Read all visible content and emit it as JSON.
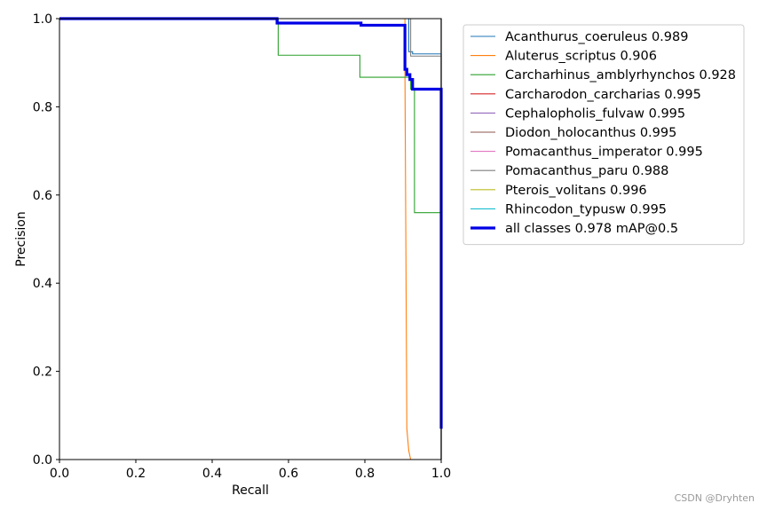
{
  "chart_data": {
    "type": "line",
    "title": "",
    "xlabel": "Recall",
    "ylabel": "Precision",
    "xlim": [
      0,
      1
    ],
    "ylim": [
      0,
      1
    ],
    "xticks": [
      "0.0",
      "0.2",
      "0.4",
      "0.6",
      "0.8",
      "1.0"
    ],
    "yticks": [
      "0.0",
      "0.2",
      "0.4",
      "0.6",
      "0.8",
      "1.0"
    ],
    "legend_position": "outside-top-right",
    "series": [
      {
        "name": "Acanthurus_coeruleus 0.989",
        "color": "#1f77b4",
        "bold": false,
        "x": [
          0,
          0.915,
          0.915,
          0.925,
          0.925,
          1.0,
          1.0
        ],
        "y": [
          1,
          1,
          0.925,
          0.925,
          0.92,
          0.92,
          0
        ]
      },
      {
        "name": "Aluterus_scriptus 0.906",
        "color": "#ff7f0e",
        "bold": false,
        "x": [
          0,
          0.905,
          0.905,
          0.91,
          0.915,
          0.92,
          1.0
        ],
        "y": [
          1,
          1,
          0.88,
          0.07,
          0.02,
          0,
          0
        ]
      },
      {
        "name": "Carcharhinus_amblyrhynchos 0.928",
        "color": "#2ca02c",
        "bold": false,
        "x": [
          0,
          0.573,
          0.573,
          0.787,
          0.787,
          0.92,
          0.92,
          0.93,
          0.93,
          1.0,
          1.0
        ],
        "y": [
          1,
          1,
          0.917,
          0.917,
          0.867,
          0.867,
          0.84,
          0.84,
          0.56,
          0.56,
          0
        ]
      },
      {
        "name": "Carcharodon_carcharias 0.995",
        "color": "#d62728",
        "bold": false,
        "x": [
          0,
          1.0,
          1.0
        ],
        "y": [
          1,
          1,
          0
        ]
      },
      {
        "name": "Cephalopholis_fulvaw 0.995",
        "color": "#9467bd",
        "bold": false,
        "x": [
          0,
          1.0,
          1.0
        ],
        "y": [
          1,
          1,
          0
        ]
      },
      {
        "name": "Diodon_holocanthus 0.995",
        "color": "#8c564b",
        "bold": false,
        "x": [
          0,
          1.0,
          1.0
        ],
        "y": [
          1,
          1,
          0
        ]
      },
      {
        "name": "Pomacanthus_imperator 0.995",
        "color": "#e377c2",
        "bold": false,
        "x": [
          0,
          1.0,
          1.0
        ],
        "y": [
          1,
          1,
          0
        ]
      },
      {
        "name": "Pomacanthus_paru 0.988",
        "color": "#7f7f7f",
        "bold": false,
        "x": [
          0,
          0.92,
          0.92,
          1.0,
          1.0
        ],
        "y": [
          1,
          1,
          0.915,
          0.915,
          0
        ]
      },
      {
        "name": "Pterois_volitans 0.996",
        "color": "#bcbd22",
        "bold": false,
        "x": [
          0,
          1.0,
          1.0
        ],
        "y": [
          1,
          1,
          0
        ]
      },
      {
        "name": "Rhincodon_typusw 0.995",
        "color": "#17becf",
        "bold": false,
        "x": [
          0,
          1.0,
          1.0
        ],
        "y": [
          1,
          1,
          0
        ]
      },
      {
        "name": "all classes 0.978 mAP@0.5",
        "color": "#0000e6",
        "bold": true,
        "x": [
          0,
          0.57,
          0.57,
          0.79,
          0.79,
          0.905,
          0.905,
          0.91,
          0.91,
          0.918,
          0.918,
          0.925,
          0.925,
          1.0,
          1.0
        ],
        "y": [
          1,
          1,
          0.99,
          0.99,
          0.985,
          0.985,
          0.885,
          0.885,
          0.873,
          0.873,
          0.862,
          0.862,
          0.84,
          0.84,
          0.07
        ]
      }
    ]
  },
  "watermark": "CSDN @Dryhten"
}
